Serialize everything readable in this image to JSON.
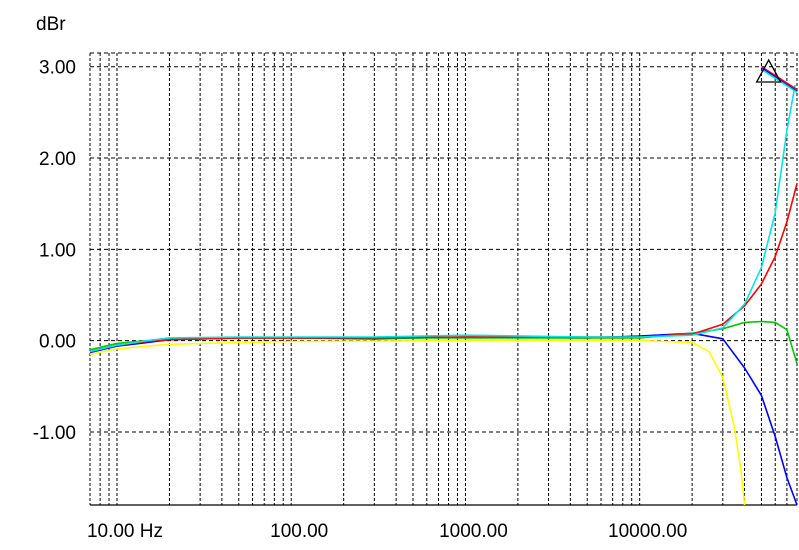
{
  "chart_data": {
    "type": "line",
    "title": "",
    "ylabel": "dBr",
    "xlabel": "",
    "x_scale": "log",
    "xlim": [
      7,
      80000
    ],
    "ylim": [
      -1.8,
      3.15
    ],
    "grid": true,
    "legend": "none",
    "x_ticks": [
      {
        "value": 10,
        "label": "10.00 Hz"
      },
      {
        "value": 100,
        "label": "100.00"
      },
      {
        "value": 1000,
        "label": "1000.00"
      },
      {
        "value": 10000,
        "label": "10000.00"
      }
    ],
    "y_ticks": [
      {
        "value": 3,
        "label": "3.00"
      },
      {
        "value": 2,
        "label": "2.00"
      },
      {
        "value": 1,
        "label": "1.00"
      },
      {
        "value": 0,
        "label": "0.00"
      },
      {
        "value": -1,
        "label": "-1.00"
      }
    ],
    "series": [
      {
        "color": "#ffff00",
        "points": [
          [
            7,
            -0.15
          ],
          [
            10,
            -0.09
          ],
          [
            15,
            -0.06
          ],
          [
            20,
            -0.04
          ],
          [
            50,
            -0.02
          ],
          [
            100,
            -0.01
          ],
          [
            1000,
            0
          ],
          [
            10000,
            0
          ],
          [
            20000,
            -0.02
          ],
          [
            25000,
            -0.12
          ],
          [
            30000,
            -0.4
          ],
          [
            35000,
            -0.95
          ],
          [
            38000,
            -1.4
          ],
          [
            40000,
            -1.8
          ]
        ]
      },
      {
        "color": "#0000ff",
        "points": [
          [
            7,
            -0.13
          ],
          [
            10,
            -0.06
          ],
          [
            15,
            -0.02
          ],
          [
            20,
            0.01
          ],
          [
            50,
            0.03
          ],
          [
            100,
            0.03
          ],
          [
            300,
            0.02
          ],
          [
            1000,
            0.04
          ],
          [
            5000,
            0.03
          ],
          [
            10000,
            0.05
          ],
          [
            20000,
            0.08
          ],
          [
            30000,
            0.02
          ],
          [
            40000,
            -0.3
          ],
          [
            50000,
            -0.6
          ],
          [
            60000,
            -1.05
          ],
          [
            70000,
            -1.5
          ],
          [
            80000,
            -1.8
          ]
        ]
      },
      {
        "color": "#00c800",
        "points": [
          [
            7,
            -0.1
          ],
          [
            10,
            -0.03
          ],
          [
            15,
            0
          ],
          [
            20,
            0.02
          ],
          [
            50,
            0.03
          ],
          [
            100,
            0.03
          ],
          [
            1000,
            0.03
          ],
          [
            10000,
            0.03
          ],
          [
            20000,
            0.08
          ],
          [
            30000,
            0.13
          ],
          [
            40000,
            0.2
          ],
          [
            50000,
            0.21
          ],
          [
            60000,
            0.2
          ],
          [
            70000,
            0.12
          ],
          [
            80000,
            -0.25
          ]
        ]
      },
      {
        "color": "#ff0000",
        "points": [
          [
            7,
            -0.12
          ],
          [
            10,
            -0.05
          ],
          [
            15,
            -0.01
          ],
          [
            20,
            0.01
          ],
          [
            50,
            0.03
          ],
          [
            100,
            0.03
          ],
          [
            1000,
            0.04
          ],
          [
            10000,
            0.04
          ],
          [
            20000,
            0.07
          ],
          [
            30000,
            0.18
          ],
          [
            40000,
            0.38
          ],
          [
            50000,
            0.62
          ],
          [
            60000,
            0.92
          ],
          [
            70000,
            1.3
          ],
          [
            80000,
            1.72
          ]
        ]
      },
      {
        "color": "#00e6e6",
        "points": [
          [
            7,
            -0.12
          ],
          [
            10,
            -0.05
          ],
          [
            15,
            0
          ],
          [
            20,
            0.03
          ],
          [
            50,
            0.04
          ],
          [
            100,
            0.04
          ],
          [
            300,
            0.04
          ],
          [
            1000,
            0.06
          ],
          [
            5000,
            0.04
          ],
          [
            10000,
            0.04
          ],
          [
            20000,
            0.06
          ],
          [
            30000,
            0.14
          ],
          [
            40000,
            0.4
          ],
          [
            50000,
            0.8
          ],
          [
            60000,
            1.4
          ],
          [
            70000,
            2.3
          ],
          [
            78000,
            2.8
          ]
        ]
      },
      {
        "color": "#ff0000",
        "points": [
          [
            50000,
            3.0
          ],
          [
            80000,
            2.75
          ]
        ]
      },
      {
        "color": "#0000ff",
        "points": [
          [
            50500,
            2.98
          ],
          [
            80000,
            2.73
          ]
        ]
      },
      {
        "color": "#00e6e6",
        "points": [
          [
            51000,
            2.96
          ],
          [
            80000,
            2.72
          ]
        ]
      }
    ],
    "marker": {
      "shape": "triangle",
      "x": 55000,
      "y": 2.92,
      "color": "#000000"
    }
  }
}
